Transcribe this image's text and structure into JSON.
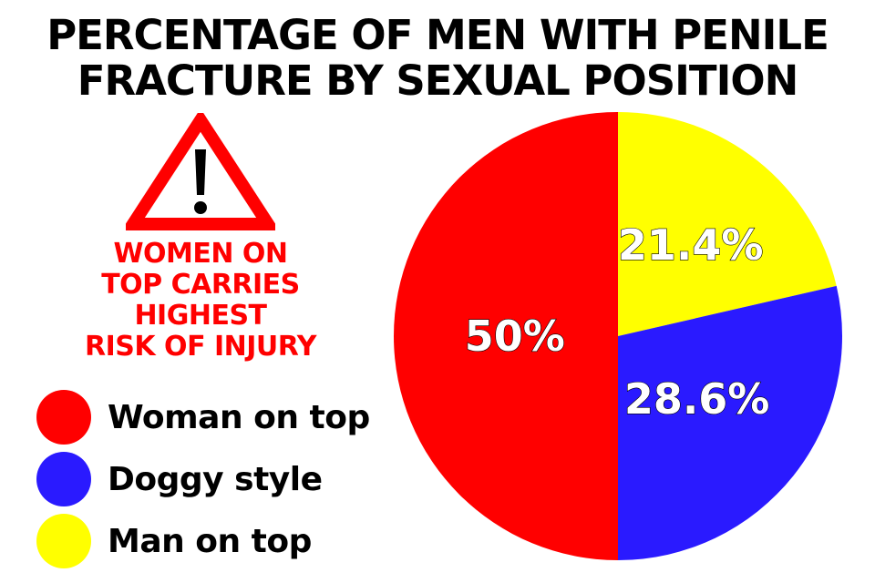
{
  "title": {
    "line1": "PERCENTAGE OF MEN WITH PENILE",
    "line2": "FRACTURE BY SEXUAL POSITION"
  },
  "warning": {
    "icon": "warning-triangle-icon",
    "lines": [
      "WOMEN ON",
      "TOP CARRIES",
      "HIGHEST",
      "RISK OF INJURY"
    ],
    "color": "#ff0000"
  },
  "chart_data": {
    "type": "pie",
    "title": "PERCENTAGE OF MEN WITH PENILE FRACTURE BY SEXUAL POSITION",
    "legend_placement": "left",
    "slices": [
      {
        "name": "Woman on top",
        "value": 50,
        "label": "50%",
        "color": "#ff0000"
      },
      {
        "name": "Doggy style",
        "value": 28.6,
        "label": "28.6%",
        "color": "#2a1aff"
      },
      {
        "name": "Man on top",
        "value": 21.4,
        "label": "21.4%",
        "color": "#ffff00"
      }
    ]
  }
}
